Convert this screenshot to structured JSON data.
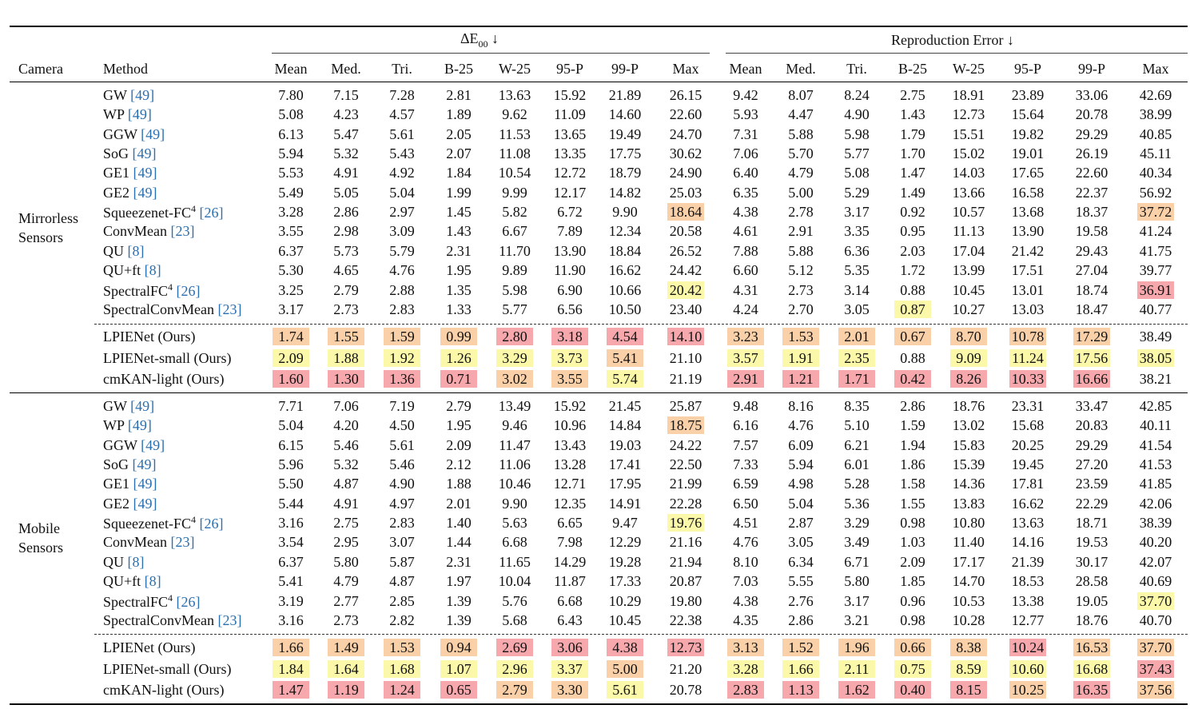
{
  "header": {
    "camera": "Camera",
    "method": "Method",
    "groups": [
      {
        "text": "ΔE",
        "sub": "00",
        "arrow": "↓"
      },
      {
        "text": "Reproduction Error",
        "arrow": "↓"
      }
    ],
    "columns": [
      "Mean",
      "Med.",
      "Tri.",
      "B-25",
      "W-25",
      "95-P",
      "99-P",
      "Max",
      "Mean",
      "Med.",
      "Tri.",
      "B-25",
      "W-25",
      "95-P",
      "99-P",
      "Max"
    ]
  },
  "sections": [
    {
      "camera": [
        "Mirrorless",
        "Sensors"
      ],
      "baselines": [
        {
          "method": "GW",
          "ref": "[49]",
          "cells": [
            "7.80",
            "7.15",
            "7.28",
            "2.81",
            "13.63",
            "15.92",
            "21.89",
            "26.15",
            "9.42",
            "8.07",
            "8.24",
            "2.75",
            "18.91",
            "23.89",
            "33.06",
            "42.69"
          ]
        },
        {
          "method": "WP",
          "ref": "[49]",
          "cells": [
            "5.08",
            "4.23",
            "4.57",
            "1.89",
            "9.62",
            "11.09",
            "14.60",
            "22.60",
            "5.93",
            "4.47",
            "4.90",
            "1.43",
            "12.73",
            "15.64",
            "20.78",
            "38.99"
          ]
        },
        {
          "method": "GGW",
          "ref": "[49]",
          "cells": [
            "6.13",
            "5.47",
            "5.61",
            "2.05",
            "11.53",
            "13.65",
            "19.49",
            "24.70",
            "7.31",
            "5.88",
            "5.98",
            "1.79",
            "15.51",
            "19.82",
            "29.29",
            "40.85"
          ]
        },
        {
          "method": "SoG",
          "ref": "[49]",
          "cells": [
            "5.94",
            "5.32",
            "5.43",
            "2.07",
            "11.08",
            "13.35",
            "17.75",
            "30.62",
            "7.06",
            "5.70",
            "5.77",
            "1.70",
            "15.02",
            "19.01",
            "26.19",
            "45.11"
          ]
        },
        {
          "method": "GE1",
          "ref": "[49]",
          "cells": [
            "5.53",
            "4.91",
            "4.92",
            "1.84",
            "10.54",
            "12.72",
            "18.79",
            "24.90",
            "6.40",
            "4.79",
            "5.08",
            "1.47",
            "14.03",
            "17.65",
            "22.60",
            "40.34"
          ]
        },
        {
          "method": "GE2",
          "ref": "[49]",
          "cells": [
            "5.49",
            "5.05",
            "5.04",
            "1.99",
            "9.99",
            "12.17",
            "14.82",
            "25.03",
            "6.35",
            "5.00",
            "5.29",
            "1.49",
            "13.66",
            "16.58",
            "22.37",
            "56.92"
          ]
        },
        {
          "method": "Squeezenet-FC",
          "sup": "4",
          "ref": "[26]",
          "cells": [
            "3.28",
            "2.86",
            "2.97",
            "1.45",
            "5.82",
            "6.72",
            "9.90",
            "18.64",
            "4.38",
            "2.78",
            "3.17",
            "0.92",
            "10.57",
            "13.68",
            "18.37",
            "37.72"
          ],
          "highlight": [
            null,
            null,
            null,
            null,
            null,
            null,
            null,
            "#fad0a8",
            null,
            null,
            null,
            null,
            null,
            null,
            null,
            "#fad0a8"
          ]
        },
        {
          "method": "ConvMean",
          "ref": "[23]",
          "cells": [
            "3.55",
            "2.98",
            "3.09",
            "1.43",
            "6.67",
            "7.89",
            "12.34",
            "20.58",
            "4.61",
            "2.91",
            "3.35",
            "0.95",
            "11.13",
            "13.90",
            "19.58",
            "41.24"
          ]
        },
        {
          "method": "QU",
          "ref": "[8]",
          "cells": [
            "6.37",
            "5.73",
            "5.79",
            "2.31",
            "11.70",
            "13.90",
            "18.84",
            "26.52",
            "7.88",
            "5.88",
            "6.36",
            "2.03",
            "17.04",
            "21.42",
            "29.43",
            "41.75"
          ]
        },
        {
          "method": "QU+ft",
          "ref": "[8]",
          "cells": [
            "5.30",
            "4.65",
            "4.76",
            "1.95",
            "9.89",
            "11.90",
            "16.62",
            "24.42",
            "6.60",
            "5.12",
            "5.35",
            "1.72",
            "13.99",
            "17.51",
            "27.04",
            "39.77"
          ]
        },
        {
          "method": "SpectralFC",
          "sup": "4",
          "ref": "[26]",
          "cells": [
            "3.25",
            "2.79",
            "2.88",
            "1.35",
            "5.98",
            "6.90",
            "10.66",
            "20.42",
            "4.31",
            "2.73",
            "3.14",
            "0.88",
            "10.45",
            "13.01",
            "18.74",
            "36.91"
          ],
          "highlight": [
            null,
            null,
            null,
            null,
            null,
            null,
            null,
            "#fbf8a9",
            null,
            null,
            null,
            null,
            null,
            null,
            null,
            "#f7a8ad"
          ]
        },
        {
          "method": "SpectralConvMean",
          "ref": "[23]",
          "cells": [
            "3.17",
            "2.73",
            "2.83",
            "1.33",
            "5.77",
            "6.56",
            "10.50",
            "23.40",
            "4.24",
            "2.70",
            "3.05",
            "0.87",
            "10.27",
            "13.03",
            "18.47",
            "40.77"
          ],
          "highlight": [
            null,
            null,
            null,
            null,
            null,
            null,
            null,
            null,
            null,
            null,
            null,
            "#fbf8a9",
            null,
            null,
            null,
            null
          ]
        }
      ],
      "ours": [
        {
          "method": "LPIENet (Ours)",
          "cells": [
            "1.74",
            "1.55",
            "1.59",
            "0.99",
            "2.80",
            "3.18",
            "4.54",
            "14.10",
            "3.23",
            "1.53",
            "2.01",
            "0.67",
            "8.70",
            "10.78",
            "17.29",
            "38.49"
          ],
          "highlight": [
            "#fad0a8",
            "#fad0a8",
            "#fad0a8",
            "#fad0a8",
            "#f7a8ad",
            "#f7a8ad",
            "#f7a8ad",
            "#f7a8ad",
            "#fad0a8",
            "#fad0a8",
            "#fad0a8",
            "#fad0a8",
            "#fad0a8",
            "#fad0a8",
            "#fad0a8",
            null
          ]
        },
        {
          "method": "LPIENet-small (Ours)",
          "cells": [
            "2.09",
            "1.88",
            "1.92",
            "1.26",
            "3.29",
            "3.73",
            "5.41",
            "21.10",
            "3.57",
            "1.91",
            "2.35",
            "0.88",
            "9.09",
            "11.24",
            "17.56",
            "38.05"
          ],
          "highlight": [
            "#fbf8a9",
            "#fbf8a9",
            "#fbf8a9",
            "#fbf8a9",
            "#fbf8a9",
            "#fbf8a9",
            "#fad0a8",
            null,
            "#fbf8a9",
            "#fbf8a9",
            "#fbf8a9",
            null,
            "#fbf8a9",
            "#fbf8a9",
            "#fbf8a9",
            "#fbf8a9"
          ]
        },
        {
          "method": "cmKAN-light (Ours)",
          "cells": [
            "1.60",
            "1.30",
            "1.36",
            "0.71",
            "3.02",
            "3.55",
            "5.74",
            "21.19",
            "2.91",
            "1.21",
            "1.71",
            "0.42",
            "8.26",
            "10.33",
            "16.66",
            "38.21"
          ],
          "highlight": [
            "#f7a8ad",
            "#f7a8ad",
            "#f7a8ad",
            "#f7a8ad",
            "#fad0a8",
            "#fad0a8",
            "#fbf8a9",
            null,
            "#f7a8ad",
            "#f7a8ad",
            "#f7a8ad",
            "#f7a8ad",
            "#f7a8ad",
            "#f7a8ad",
            "#f7a8ad",
            null
          ]
        }
      ]
    },
    {
      "camera": [
        "Mobile",
        "Sensors"
      ],
      "baselines": [
        {
          "method": "GW",
          "ref": "[49]",
          "cells": [
            "7.71",
            "7.06",
            "7.19",
            "2.79",
            "13.49",
            "15.92",
            "21.45",
            "25.87",
            "9.48",
            "8.16",
            "8.35",
            "2.86",
            "18.76",
            "23.31",
            "33.47",
            "42.85"
          ]
        },
        {
          "method": "WP",
          "ref": "[49]",
          "cells": [
            "5.04",
            "4.20",
            "4.50",
            "1.95",
            "9.46",
            "10.96",
            "14.84",
            "18.75",
            "6.16",
            "4.76",
            "5.10",
            "1.59",
            "13.02",
            "15.68",
            "20.83",
            "40.11"
          ],
          "highlight": [
            null,
            null,
            null,
            null,
            null,
            null,
            null,
            "#fad0a8",
            null,
            null,
            null,
            null,
            null,
            null,
            null,
            null
          ]
        },
        {
          "method": "GGW",
          "ref": "[49]",
          "cells": [
            "6.15",
            "5.46",
            "5.61",
            "2.09",
            "11.47",
            "13.43",
            "19.03",
            "24.22",
            "7.57",
            "6.09",
            "6.21",
            "1.94",
            "15.83",
            "20.25",
            "29.29",
            "41.54"
          ]
        },
        {
          "method": "SoG",
          "ref": "[49]",
          "cells": [
            "5.96",
            "5.32",
            "5.46",
            "2.12",
            "11.06",
            "13.28",
            "17.41",
            "22.50",
            "7.33",
            "5.94",
            "6.01",
            "1.86",
            "15.39",
            "19.45",
            "27.20",
            "41.53"
          ]
        },
        {
          "method": "GE1",
          "ref": "[49]",
          "cells": [
            "5.50",
            "4.87",
            "4.90",
            "1.88",
            "10.46",
            "12.71",
            "17.95",
            "21.99",
            "6.59",
            "4.98",
            "5.28",
            "1.58",
            "14.36",
            "17.81",
            "23.59",
            "41.85"
          ]
        },
        {
          "method": "GE2",
          "ref": "[49]",
          "cells": [
            "5.44",
            "4.91",
            "4.97",
            "2.01",
            "9.90",
            "12.35",
            "14.91",
            "22.28",
            "6.50",
            "5.04",
            "5.36",
            "1.55",
            "13.83",
            "16.62",
            "22.29",
            "42.06"
          ]
        },
        {
          "method": "Squeezenet-FC",
          "sup": "4",
          "ref": "[26]",
          "cells": [
            "3.16",
            "2.75",
            "2.83",
            "1.40",
            "5.63",
            "6.65",
            "9.47",
            "19.76",
            "4.51",
            "2.87",
            "3.29",
            "0.98",
            "10.80",
            "13.63",
            "18.71",
            "38.39"
          ],
          "highlight": [
            null,
            null,
            null,
            null,
            null,
            null,
            null,
            "#fbf8a9",
            null,
            null,
            null,
            null,
            null,
            null,
            null,
            null
          ]
        },
        {
          "method": "ConvMean",
          "ref": "[23]",
          "cells": [
            "3.54",
            "2.95",
            "3.07",
            "1.44",
            "6.68",
            "7.98",
            "12.29",
            "21.16",
            "4.76",
            "3.05",
            "3.49",
            "1.03",
            "11.40",
            "14.16",
            "19.53",
            "40.20"
          ]
        },
        {
          "method": "QU",
          "ref": "[8]",
          "cells": [
            "6.37",
            "5.80",
            "5.87",
            "2.31",
            "11.65",
            "14.29",
            "19.28",
            "21.94",
            "8.10",
            "6.34",
            "6.71",
            "2.09",
            "17.17",
            "21.39",
            "30.17",
            "42.07"
          ]
        },
        {
          "method": "QU+ft",
          "ref": "[8]",
          "cells": [
            "5.41",
            "4.79",
            "4.87",
            "1.97",
            "10.04",
            "11.87",
            "17.33",
            "20.87",
            "7.03",
            "5.55",
            "5.80",
            "1.85",
            "14.70",
            "18.53",
            "28.58",
            "40.69"
          ]
        },
        {
          "method": "SpectralFC",
          "sup": "4",
          "ref": "[26]",
          "cells": [
            "3.19",
            "2.77",
            "2.85",
            "1.39",
            "5.76",
            "6.68",
            "10.29",
            "19.80",
            "4.38",
            "2.76",
            "3.17",
            "0.96",
            "10.53",
            "13.38",
            "19.05",
            "37.70"
          ],
          "highlight": [
            null,
            null,
            null,
            null,
            null,
            null,
            null,
            null,
            null,
            null,
            null,
            null,
            null,
            null,
            null,
            "#fbf8a9"
          ]
        },
        {
          "method": "SpectralConvMean",
          "ref": "[23]",
          "cells": [
            "3.16",
            "2.73",
            "2.82",
            "1.39",
            "5.68",
            "6.43",
            "10.45",
            "22.38",
            "4.35",
            "2.86",
            "3.21",
            "0.98",
            "10.28",
            "12.77",
            "18.76",
            "40.70"
          ]
        }
      ],
      "ours": [
        {
          "method": "LPIENet (Ours)",
          "cells": [
            "1.66",
            "1.49",
            "1.53",
            "0.94",
            "2.69",
            "3.06",
            "4.38",
            "12.73",
            "3.13",
            "1.52",
            "1.96",
            "0.66",
            "8.38",
            "10.24",
            "16.53",
            "37.70"
          ],
          "highlight": [
            "#fad0a8",
            "#fad0a8",
            "#fad0a8",
            "#fad0a8",
            "#f7a8ad",
            "#f7a8ad",
            "#f7a8ad",
            "#f7a8ad",
            "#fad0a8",
            "#fad0a8",
            "#fad0a8",
            "#fad0a8",
            "#fad0a8",
            "#f7a8ad",
            "#fad0a8",
            "#fad0a8"
          ]
        },
        {
          "method": "LPIENet-small (Ours)",
          "cells": [
            "1.84",
            "1.64",
            "1.68",
            "1.07",
            "2.96",
            "3.37",
            "5.00",
            "21.20",
            "3.28",
            "1.66",
            "2.11",
            "0.75",
            "8.59",
            "10.60",
            "16.68",
            "37.43"
          ],
          "highlight": [
            "#fbf8a9",
            "#fbf8a9",
            "#fbf8a9",
            "#fbf8a9",
            "#fbf8a9",
            "#fbf8a9",
            "#fad0a8",
            null,
            "#fbf8a9",
            "#fbf8a9",
            "#fbf8a9",
            "#fbf8a9",
            "#fbf8a9",
            "#fbf8a9",
            "#fbf8a9",
            "#f7a8ad"
          ]
        },
        {
          "method": "cmKAN-light (Ours)",
          "cells": [
            "1.47",
            "1.19",
            "1.24",
            "0.65",
            "2.79",
            "3.30",
            "5.61",
            "20.78",
            "2.83",
            "1.13",
            "1.62",
            "0.40",
            "8.15",
            "10.25",
            "16.35",
            "37.56"
          ],
          "highlight": [
            "#f7a8ad",
            "#f7a8ad",
            "#f7a8ad",
            "#f7a8ad",
            "#fad0a8",
            "#fad0a8",
            "#fbf8a9",
            null,
            "#f7a8ad",
            "#f7a8ad",
            "#f7a8ad",
            "#f7a8ad",
            "#f7a8ad",
            "#fad0a8",
            "#f7a8ad",
            "#fad0a8"
          ]
        }
      ]
    }
  ]
}
